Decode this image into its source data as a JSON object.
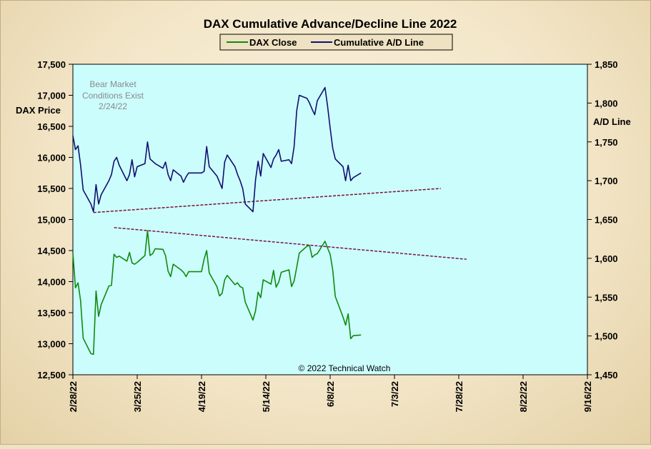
{
  "chart_data": {
    "type": "line",
    "title": "DAX Cumulative  Advance/Decline  Line  2022",
    "legend": {
      "placement": "top-center",
      "entries": [
        "DAX Close",
        "Cumulative A/D Line"
      ]
    },
    "y_left": {
      "label": "DAX Price",
      "ylim": [
        12500,
        17500
      ],
      "ticks": [
        "12,500",
        "13,000",
        "13,500",
        "14,000",
        "14,500",
        "15,000",
        "15,500",
        "16,000",
        "16,500",
        "17,000",
        "17,500"
      ]
    },
    "y_right": {
      "label": "A/D Line",
      "ylim": [
        1450,
        1850
      ],
      "ticks": [
        "1,450",
        "1,500",
        "1,550",
        "1,600",
        "1,650",
        "1,700",
        "1,750",
        "1,800",
        "1,850"
      ]
    },
    "x": {
      "range": [
        "2022-02-28",
        "2022-09-16"
      ],
      "ticks": [
        "2/28/22",
        "3/25/22",
        "4/19/22",
        "5/14/22",
        "6/8/22",
        "7/3/22",
        "7/28/22",
        "8/22/22",
        "9/16/22"
      ]
    },
    "annotations": {
      "bear_market": [
        "Bear Market",
        "Conditions  Exist",
        "2/24/22"
      ],
      "copyright": "© 2022 Technical  Watch"
    },
    "colors": {
      "dax_close": "#0f8a0f",
      "ad_line": "#10106e",
      "upper_trendline": "#7a1030",
      "lower_trendline": "#7a1050",
      "plot_background": "#ccfdfd"
    },
    "series": [
      {
        "name": "DAX Close",
        "axis": "left",
        "x": [
          "2022-02-28",
          "2022-03-01",
          "2022-03-02",
          "2022-03-03",
          "2022-03-04",
          "2022-03-07",
          "2022-03-08",
          "2022-03-09",
          "2022-03-10",
          "2022-03-11",
          "2022-03-14",
          "2022-03-15",
          "2022-03-16",
          "2022-03-17",
          "2022-03-18",
          "2022-03-21",
          "2022-03-22",
          "2022-03-23",
          "2022-03-24",
          "2022-03-25",
          "2022-03-28",
          "2022-03-29",
          "2022-03-30",
          "2022-03-31",
          "2022-04-01",
          "2022-04-04",
          "2022-04-05",
          "2022-04-06",
          "2022-04-07",
          "2022-04-08",
          "2022-04-11",
          "2022-04-12",
          "2022-04-13",
          "2022-04-14",
          "2022-04-19",
          "2022-04-20",
          "2022-04-21",
          "2022-04-22",
          "2022-04-25",
          "2022-04-26",
          "2022-04-27",
          "2022-04-28",
          "2022-04-29",
          "2022-05-02",
          "2022-05-03",
          "2022-05-04",
          "2022-05-05",
          "2022-05-06",
          "2022-05-09",
          "2022-05-10",
          "2022-05-11",
          "2022-05-12",
          "2022-05-13",
          "2022-05-16",
          "2022-05-17",
          "2022-05-18",
          "2022-05-19",
          "2022-05-20",
          "2022-05-23",
          "2022-05-24",
          "2022-05-25",
          "2022-05-26",
          "2022-05-27",
          "2022-05-30",
          "2022-05-31",
          "2022-06-01",
          "2022-06-02",
          "2022-06-03",
          "2022-06-06",
          "2022-06-07",
          "2022-06-08",
          "2022-06-09",
          "2022-06-10",
          "2022-06-13",
          "2022-06-14",
          "2022-06-15",
          "2022-06-16",
          "2022-06-17",
          "2022-06-20"
        ],
        "values": [
          14460,
          13900,
          13980,
          13690,
          13090,
          12840,
          12830,
          13850,
          13440,
          13630,
          13930,
          13940,
          14440,
          14390,
          14410,
          14330,
          14470,
          14300,
          14280,
          14310,
          14420,
          14820,
          14420,
          14450,
          14530,
          14520,
          14420,
          14170,
          14080,
          14280,
          14190,
          14150,
          14080,
          14160,
          14160,
          14360,
          14500,
          14140,
          13920,
          13770,
          13810,
          14030,
          14100,
          13950,
          13980,
          13920,
          13900,
          13670,
          13380,
          13530,
          13830,
          13740,
          14030,
          13960,
          14180,
          13910,
          13990,
          14150,
          14190,
          13920,
          14010,
          14230,
          14460,
          14570,
          14580,
          14390,
          14430,
          14450,
          14650,
          14540,
          14440,
          14190,
          13760,
          13430,
          13300,
          13480,
          13080,
          13130,
          13140
        ]
      },
      {
        "name": "Cumulative A/D Line",
        "axis": "right",
        "x": [
          "2022-02-28",
          "2022-03-01",
          "2022-03-02",
          "2022-03-03",
          "2022-03-04",
          "2022-03-07",
          "2022-03-08",
          "2022-03-09",
          "2022-03-10",
          "2022-03-11",
          "2022-03-14",
          "2022-03-15",
          "2022-03-16",
          "2022-03-17",
          "2022-03-18",
          "2022-03-21",
          "2022-03-22",
          "2022-03-23",
          "2022-03-24",
          "2022-03-25",
          "2022-03-28",
          "2022-03-29",
          "2022-03-30",
          "2022-03-31",
          "2022-04-01",
          "2022-04-04",
          "2022-04-05",
          "2022-04-06",
          "2022-04-07",
          "2022-04-08",
          "2022-04-11",
          "2022-04-12",
          "2022-04-13",
          "2022-04-14",
          "2022-04-19",
          "2022-04-20",
          "2022-04-21",
          "2022-04-22",
          "2022-04-25",
          "2022-04-26",
          "2022-04-27",
          "2022-04-28",
          "2022-04-29",
          "2022-05-02",
          "2022-05-03",
          "2022-05-04",
          "2022-05-05",
          "2022-05-06",
          "2022-05-09",
          "2022-05-10",
          "2022-05-11",
          "2022-05-12",
          "2022-05-13",
          "2022-05-16",
          "2022-05-17",
          "2022-05-18",
          "2022-05-19",
          "2022-05-20",
          "2022-05-23",
          "2022-05-24",
          "2022-05-25",
          "2022-05-26",
          "2022-05-27",
          "2022-05-30",
          "2022-05-31",
          "2022-06-01",
          "2022-06-02",
          "2022-06-03",
          "2022-06-06",
          "2022-06-07",
          "2022-06-08",
          "2022-06-09",
          "2022-06-10",
          "2022-06-13",
          "2022-06-14",
          "2022-06-15",
          "2022-06-16",
          "2022-06-17",
          "2022-06-20"
        ],
        "values": [
          1758,
          1740,
          1745,
          1720,
          1688,
          1670,
          1660,
          1695,
          1670,
          1682,
          1700,
          1708,
          1725,
          1730,
          1720,
          1700,
          1708,
          1727,
          1705,
          1718,
          1722,
          1750,
          1728,
          1725,
          1722,
          1716,
          1724,
          1708,
          1700,
          1714,
          1706,
          1698,
          1705,
          1710,
          1710,
          1712,
          1744,
          1718,
          1706,
          1698,
          1690,
          1724,
          1733,
          1718,
          1708,
          1700,
          1690,
          1670,
          1660,
          1701,
          1725,
          1706,
          1735,
          1717,
          1728,
          1733,
          1740,
          1725,
          1727,
          1722,
          1744,
          1790,
          1810,
          1806,
          1800,
          1792,
          1785,
          1803,
          1820,
          1796,
          1768,
          1742,
          1728,
          1718,
          1700,
          1720,
          1700,
          1704,
          1710
        ]
      }
    ],
    "trendlines": [
      {
        "axis": "right",
        "x": [
          "2022-03-08",
          "2022-07-21"
        ],
        "values": [
          1659,
          1690
        ]
      },
      {
        "axis": "left",
        "x": [
          "2022-03-16",
          "2022-07-31"
        ],
        "values": [
          14870,
          14360
        ]
      }
    ]
  }
}
